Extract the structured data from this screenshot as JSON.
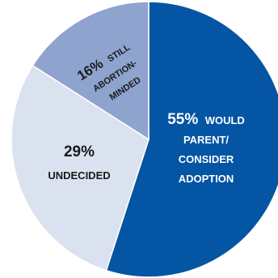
{
  "chart_data": {
    "type": "pie",
    "slices": [
      {
        "pct": "55%",
        "words": [
          "WOULD",
          "PARENT/",
          "CONSIDER",
          "ADOPTION"
        ],
        "value": 55,
        "color": "#0455a3",
        "text_color": "#ffffff"
      },
      {
        "pct": "29%",
        "words": [
          "UNDECIDED"
        ],
        "value": 29,
        "color": "#dbe2ef",
        "text_color": "#1a1a1a"
      },
      {
        "pct": "16%",
        "words": [
          "STILL",
          "ABORTION-",
          "MINDED"
        ],
        "value": 16,
        "color": "#8ea3ce",
        "text_color": "#1a1a1a"
      }
    ],
    "legend": "none",
    "start_angle_deg": 0,
    "direction": "clockwise"
  }
}
